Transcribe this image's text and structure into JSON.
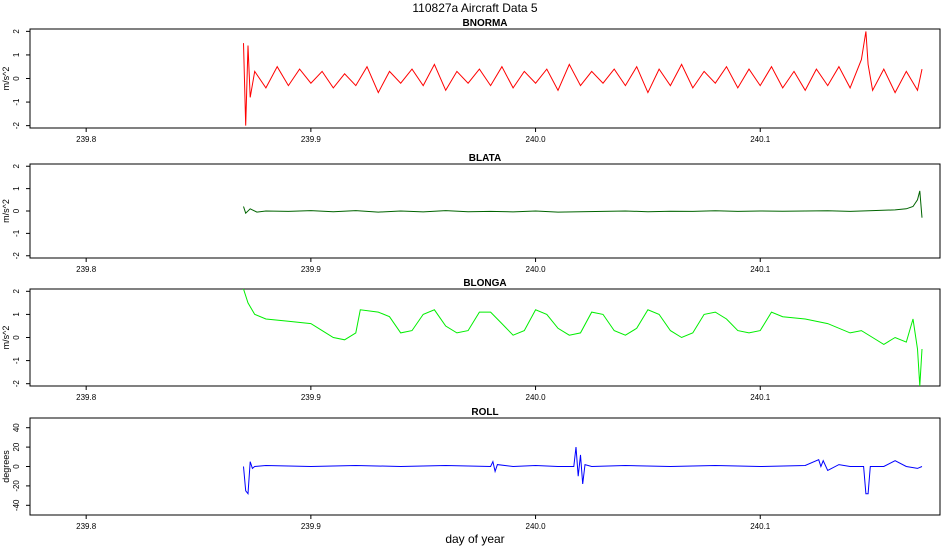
{
  "figure": {
    "title": "110827a   Aircraft Data 5",
    "xlabel": "day of year"
  },
  "chart_data": [
    {
      "type": "line",
      "title": "BNORMA",
      "ylabel": "m/s^2",
      "color": "#ff0000",
      "xlim": [
        239.775,
        240.18
      ],
      "ylim": [
        -2.1,
        2.1
      ],
      "x_ticks": [
        "239.8",
        "239.9",
        "240.0",
        "240.1"
      ],
      "x_tick_values": [
        239.8,
        239.9,
        240.0,
        240.1
      ],
      "y_ticks": [
        "-2",
        "-1",
        "0",
        "1",
        "2"
      ],
      "y_tick_values": [
        -2,
        -1,
        0,
        1,
        2
      ],
      "series": [
        {
          "x": [
            239.87,
            239.871,
            239.872,
            239.873,
            239.875,
            239.88,
            239.885,
            239.89,
            239.895,
            239.9,
            239.905,
            239.91,
            239.915,
            239.92,
            239.925,
            239.93,
            239.935,
            239.94,
            239.945,
            239.95,
            239.955,
            239.96,
            239.965,
            239.97,
            239.975,
            239.98,
            239.985,
            239.99,
            239.995,
            240.0,
            240.005,
            240.01,
            240.015,
            240.02,
            240.025,
            240.03,
            240.035,
            240.04,
            240.045,
            240.05,
            240.055,
            240.06,
            240.065,
            240.07,
            240.075,
            240.08,
            240.085,
            240.09,
            240.095,
            240.1,
            240.105,
            240.11,
            240.115,
            240.12,
            240.125,
            240.13,
            240.135,
            240.14,
            240.145,
            240.147,
            240.148,
            240.15,
            240.155,
            240.16,
            240.165,
            240.17,
            240.172
          ],
          "y": [
            1.5,
            -2.0,
            1.4,
            -0.8,
            0.3,
            -0.4,
            0.5,
            -0.3,
            0.4,
            -0.2,
            0.3,
            -0.4,
            0.2,
            -0.3,
            0.5,
            -0.6,
            0.3,
            -0.2,
            0.4,
            -0.3,
            0.6,
            -0.5,
            0.3,
            -0.2,
            0.4,
            -0.3,
            0.5,
            -0.4,
            0.3,
            -0.2,
            0.4,
            -0.5,
            0.6,
            -0.3,
            0.3,
            -0.2,
            0.4,
            -0.3,
            0.5,
            -0.6,
            0.4,
            -0.3,
            0.6,
            -0.4,
            0.3,
            -0.2,
            0.5,
            -0.4,
            0.4,
            -0.3,
            0.5,
            -0.4,
            0.3,
            -0.5,
            0.4,
            -0.3,
            0.5,
            -0.4,
            0.8,
            2.0,
            0.6,
            -0.5,
            0.4,
            -0.6,
            0.3,
            -0.5,
            0.4
          ]
        }
      ]
    },
    {
      "type": "line",
      "title": "BLATA",
      "ylabel": "m/s^2",
      "color": "#006400",
      "xlim": [
        239.775,
        240.18
      ],
      "ylim": [
        -2.1,
        2.1
      ],
      "x_ticks": [
        "239.8",
        "239.9",
        "240.0",
        "240.1"
      ],
      "x_tick_values": [
        239.8,
        239.9,
        240.0,
        240.1
      ],
      "y_ticks": [
        "-2",
        "-1",
        "0",
        "1",
        "2"
      ],
      "y_tick_values": [
        -2,
        -1,
        0,
        1,
        2
      ],
      "series": [
        {
          "x": [
            239.87,
            239.871,
            239.873,
            239.876,
            239.88,
            239.89,
            239.9,
            239.91,
            239.92,
            239.93,
            239.94,
            239.95,
            239.96,
            239.97,
            239.98,
            239.99,
            240.0,
            240.01,
            240.02,
            240.03,
            240.04,
            240.05,
            240.06,
            240.07,
            240.08,
            240.09,
            240.1,
            240.11,
            240.12,
            240.13,
            240.14,
            240.15,
            240.16,
            240.165,
            240.168,
            240.17,
            240.171,
            240.172
          ],
          "y": [
            0.2,
            -0.1,
            0.1,
            -0.05,
            0.0,
            -0.02,
            0.02,
            -0.03,
            0.02,
            -0.05,
            0.0,
            -0.04,
            0.02,
            -0.03,
            -0.02,
            -0.04,
            0.0,
            -0.05,
            -0.03,
            -0.02,
            0.0,
            -0.03,
            -0.01,
            -0.02,
            0.01,
            -0.02,
            0.0,
            -0.01,
            0.0,
            0.01,
            -0.02,
            0.02,
            0.05,
            0.1,
            0.2,
            0.5,
            0.9,
            -0.3
          ]
        }
      ]
    },
    {
      "type": "line",
      "title": "BLONGA",
      "ylabel": "m/s^2",
      "color": "#00ee00",
      "xlim": [
        239.775,
        240.18
      ],
      "ylim": [
        -2.1,
        2.1
      ],
      "x_ticks": [
        "239.8",
        "239.9",
        "240.0",
        "240.1"
      ],
      "x_tick_values": [
        239.8,
        239.9,
        240.0,
        240.1
      ],
      "y_ticks": [
        "-2",
        "-1",
        "0",
        "1",
        "2"
      ],
      "y_tick_values": [
        -2,
        -1,
        0,
        1,
        2
      ],
      "series": [
        {
          "x": [
            239.87,
            239.872,
            239.875,
            239.88,
            239.89,
            239.9,
            239.905,
            239.91,
            239.915,
            239.92,
            239.922,
            239.93,
            239.935,
            239.94,
            239.945,
            239.95,
            239.955,
            239.96,
            239.965,
            239.97,
            239.975,
            239.98,
            239.985,
            239.99,
            239.995,
            240.0,
            240.005,
            240.01,
            240.015,
            240.02,
            240.025,
            240.03,
            240.035,
            240.04,
            240.045,
            240.05,
            240.055,
            240.06,
            240.065,
            240.07,
            240.075,
            240.08,
            240.085,
            240.09,
            240.095,
            240.1,
            240.105,
            240.11,
            240.12,
            240.13,
            240.14,
            240.145,
            240.15,
            240.155,
            240.16,
            240.165,
            240.168,
            240.17,
            240.171,
            240.172
          ],
          "y": [
            2.1,
            1.5,
            1.0,
            0.8,
            0.7,
            0.6,
            0.3,
            0.0,
            -0.1,
            0.2,
            1.2,
            1.1,
            0.9,
            0.2,
            0.3,
            1.0,
            1.2,
            0.5,
            0.2,
            0.3,
            1.1,
            1.1,
            0.6,
            0.1,
            0.3,
            1.2,
            1.0,
            0.4,
            0.1,
            0.2,
            1.1,
            1.0,
            0.3,
            0.1,
            0.4,
            1.2,
            1.0,
            0.3,
            0.0,
            0.2,
            1.0,
            1.1,
            0.8,
            0.3,
            0.2,
            0.3,
            1.1,
            0.9,
            0.8,
            0.6,
            0.2,
            0.3,
            0.0,
            -0.3,
            0.0,
            -0.2,
            0.8,
            -0.5,
            -2.1,
            -0.5
          ]
        }
      ]
    },
    {
      "type": "line",
      "title": "ROLL",
      "ylabel": "degrees",
      "color": "#0000ff",
      "xlim": [
        239.775,
        240.18
      ],
      "ylim": [
        -50,
        50
      ],
      "x_ticks": [
        "239.8",
        "239.9",
        "240.0",
        "240.1"
      ],
      "x_tick_values": [
        239.8,
        239.9,
        240.0,
        240.1
      ],
      "y_ticks": [
        "-40",
        "-20",
        "0",
        "20",
        "40"
      ],
      "y_tick_values": [
        -40,
        -20,
        0,
        20,
        40
      ],
      "series": [
        {
          "x": [
            239.87,
            239.871,
            239.872,
            239.873,
            239.874,
            239.875,
            239.88,
            239.9,
            239.92,
            239.94,
            239.96,
            239.98,
            239.981,
            239.982,
            239.983,
            239.99,
            240.0,
            240.01,
            240.017,
            240.018,
            240.019,
            240.02,
            240.021,
            240.022,
            240.025,
            240.04,
            240.06,
            240.08,
            240.1,
            240.12,
            240.126,
            240.127,
            240.128,
            240.13,
            240.135,
            240.14,
            240.146,
            240.147,
            240.148,
            240.149,
            240.15,
            240.155,
            240.16,
            240.165,
            240.17,
            240.172
          ],
          "y": [
            0,
            -25,
            -28,
            5,
            -2,
            0,
            1,
            0,
            1,
            0,
            1,
            0,
            5,
            -5,
            2,
            0,
            1,
            0,
            0,
            20,
            -10,
            12,
            -18,
            2,
            0,
            1,
            0,
            1,
            0,
            1,
            7,
            0,
            6,
            -4,
            2,
            0,
            0,
            -28,
            -28,
            0,
            0,
            0,
            6,
            0,
            -2,
            0
          ]
        }
      ]
    }
  ]
}
